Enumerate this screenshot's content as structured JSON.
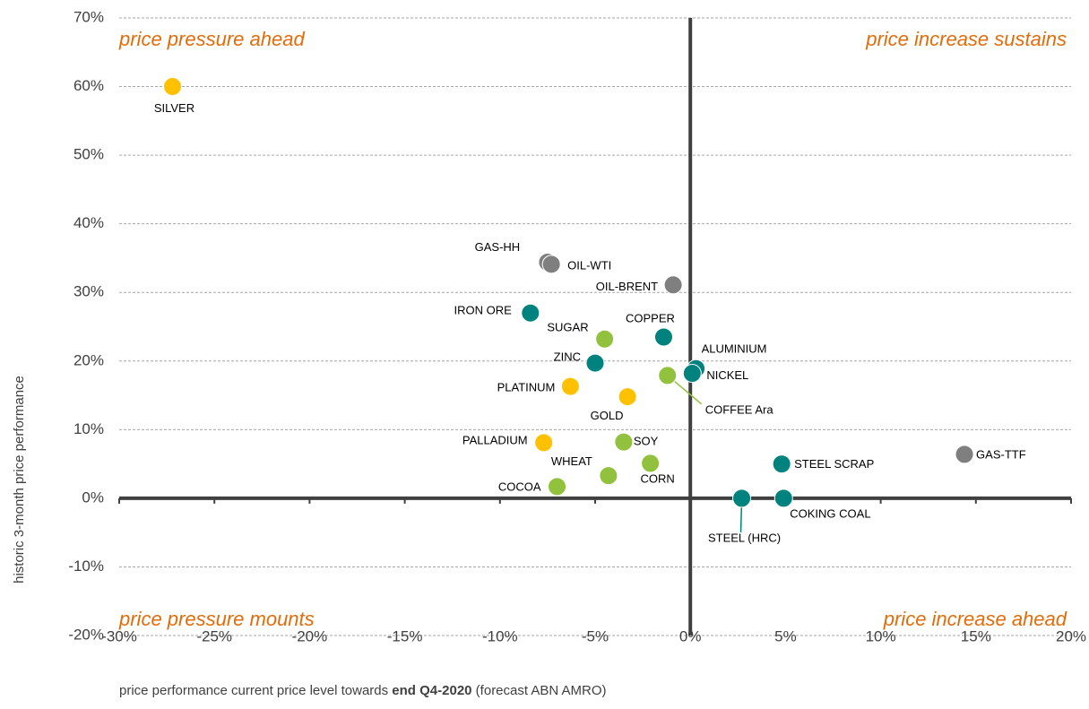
{
  "chart_data": {
    "type": "scatter",
    "quadrant_labels": [
      "price pressure ahead",
      "price increase sustains",
      "price pressure mounts",
      "price increase ahead"
    ],
    "y_label": "historic 3-month price performance",
    "x_label": [
      "price performance current price level towards ",
      "end Q4-2020",
      " (forecast ABN AMRO)"
    ],
    "xlim": [
      -30,
      20
    ],
    "xticks": [
      {
        "value": -30,
        "label": "-30%"
      },
      {
        "value": -25,
        "label": "-25%"
      },
      {
        "value": -20,
        "label": "-20%"
      },
      {
        "value": -15,
        "label": "-15%"
      },
      {
        "value": -10,
        "label": "-10%"
      },
      {
        "value": -5,
        "label": "-5%"
      },
      {
        "value": 0,
        "label": "0%"
      },
      {
        "value": 5,
        "label": "5%"
      },
      {
        "value": 10,
        "label": "10%"
      },
      {
        "value": 15,
        "label": "15%"
      },
      {
        "value": 20,
        "label": "20%"
      }
    ],
    "ylim": [
      -20,
      70
    ],
    "yticks": [
      {
        "value": -20,
        "label": "-20%"
      },
      {
        "value": -10,
        "label": "-10%"
      },
      {
        "value": 0,
        "label": "0%"
      },
      {
        "value": 10,
        "label": "10%"
      },
      {
        "value": 20,
        "label": "20%"
      },
      {
        "value": 30,
        "label": "30%"
      },
      {
        "value": 40,
        "label": "40%"
      },
      {
        "value": 50,
        "label": "50%"
      },
      {
        "value": 60,
        "label": "60%"
      },
      {
        "value": 70,
        "label": "70%"
      }
    ],
    "grid": true,
    "points": [
      {
        "label": "SILVER",
        "x": -27.2,
        "y": 60,
        "color": "#ffc000"
      },
      {
        "label": "GAS-HH",
        "x": -7.5,
        "y": 34.4,
        "color": "#7f7f7f"
      },
      {
        "label": "OIL-WTI",
        "x": -7.3,
        "y": 34.1,
        "color": "#7f7f7f"
      },
      {
        "label": "OIL-BRENT",
        "x": -0.9,
        "y": 31.1,
        "color": "#7f7f7f"
      },
      {
        "label": "IRON ORE",
        "x": -8.4,
        "y": 27,
        "color": "#00827f"
      },
      {
        "label": "SUGAR",
        "x": -4.5,
        "y": 23.2,
        "color": "#92c13e"
      },
      {
        "label": "COPPER",
        "x": -1.4,
        "y": 23.5,
        "color": "#00827f"
      },
      {
        "label": "ALUMINIUM",
        "x": 0.3,
        "y": 18.9,
        "color": "#00827f"
      },
      {
        "label": "NICKEL",
        "x": 0.1,
        "y": 18.2,
        "color": "#00827f"
      },
      {
        "label": "COFFEE Ara",
        "x": -1.2,
        "y": 17.9,
        "color": "#92c13e"
      },
      {
        "label": "ZINC",
        "x": -5,
        "y": 19.7,
        "color": "#00827f"
      },
      {
        "label": "PLATINUM",
        "x": -6.3,
        "y": 16.3,
        "color": "#ffc000"
      },
      {
        "label": "GOLD",
        "x": -3.3,
        "y": 14.8,
        "color": "#ffc000"
      },
      {
        "label": "PALLADIUM",
        "x": -7.7,
        "y": 8.1,
        "color": "#ffc000"
      },
      {
        "label": "SOY",
        "x": -3.5,
        "y": 8.2,
        "color": "#92c13e"
      },
      {
        "label": "WHEAT",
        "x": -4.3,
        "y": 3.3,
        "color": "#92c13e"
      },
      {
        "label": "CORN",
        "x": -2.1,
        "y": 5.1,
        "color": "#92c13e"
      },
      {
        "label": "COCOA",
        "x": -7,
        "y": 1.7,
        "color": "#92c13e"
      },
      {
        "label": "STEEL (HRC)",
        "x": 2.7,
        "y": 0,
        "color": "#00827f"
      },
      {
        "label": "COKING COAL",
        "x": 4.9,
        "y": 0,
        "color": "#00827f"
      },
      {
        "label": "STEEL SCRAP",
        "x": 4.8,
        "y": 5,
        "color": "#00827f"
      },
      {
        "label": "GAS-TTF",
        "x": 14.4,
        "y": 6.4,
        "color": "#7f7f7f"
      }
    ]
  }
}
